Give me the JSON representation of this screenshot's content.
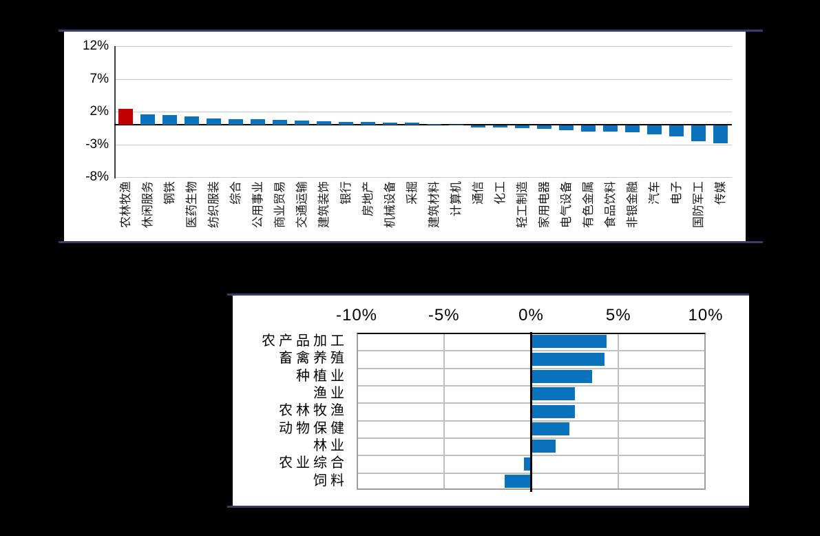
{
  "colors": {
    "background": "#000000",
    "panel_rule": "#3B3B6E",
    "bar_blue": "#0B72BE",
    "bar_red": "#C00000",
    "gridline_light": "#C8C8C8",
    "gridline_mid": "#BFBFBF",
    "table_border": "#9C9C9C",
    "axis_black": "#000000",
    "spine_dark": "#404040"
  },
  "chart_data": [
    {
      "type": "bar",
      "orientation": "vertical",
      "title": "",
      "categories": [
        "农林牧渔",
        "休闲服务",
        "钢铁",
        "医药生物",
        "纺织服装",
        "综合",
        "公用事业",
        "商业贸易",
        "交通运输",
        "建筑装饰",
        "银行",
        "房地产",
        "机械设备",
        "采掘",
        "建筑材料",
        "计算机",
        "通信",
        "化工",
        "轻工制造",
        "家用电器",
        "电气设备",
        "有色金属",
        "食品饮料",
        "非银金融",
        "汽车",
        "电子",
        "国防军工",
        "传媒"
      ],
      "values": [
        2.4,
        1.6,
        1.5,
        1.3,
        0.9,
        0.85,
        0.8,
        0.7,
        0.65,
        0.55,
        0.45,
        0.4,
        0.3,
        0.3,
        0.1,
        0.05,
        -0.3,
        -0.35,
        -0.45,
        -0.5,
        -0.7,
        -0.9,
        -0.9,
        -1.1,
        -1.4,
        -1.7,
        -2.45,
        -2.7
      ],
      "highlight_index": 0,
      "ytick_labels": [
        "12%",
        "7%",
        "2%",
        "-3%",
        "-8%"
      ],
      "ytick_values": [
        12,
        7,
        2,
        -3,
        -8
      ],
      "ylim": [
        -8,
        12
      ],
      "grid": "horizontal",
      "legend": "none"
    },
    {
      "type": "bar",
      "orientation": "horizontal",
      "title": "",
      "categories": [
        "农产品加工",
        "畜禽养殖",
        "种植业",
        "渔业",
        "农林牧渔",
        "动物保健",
        "林业",
        "农业综合",
        "饲料"
      ],
      "values": [
        4.3,
        4.2,
        3.5,
        2.5,
        2.5,
        2.2,
        1.4,
        -0.4,
        -1.5
      ],
      "xtick_labels": [
        "-10%",
        "-5%",
        "0%",
        "5%",
        "10%"
      ],
      "xtick_values": [
        -10,
        -5,
        0,
        5,
        10
      ],
      "xlim": [
        -10,
        10
      ],
      "grid": "both",
      "legend": "none"
    }
  ]
}
